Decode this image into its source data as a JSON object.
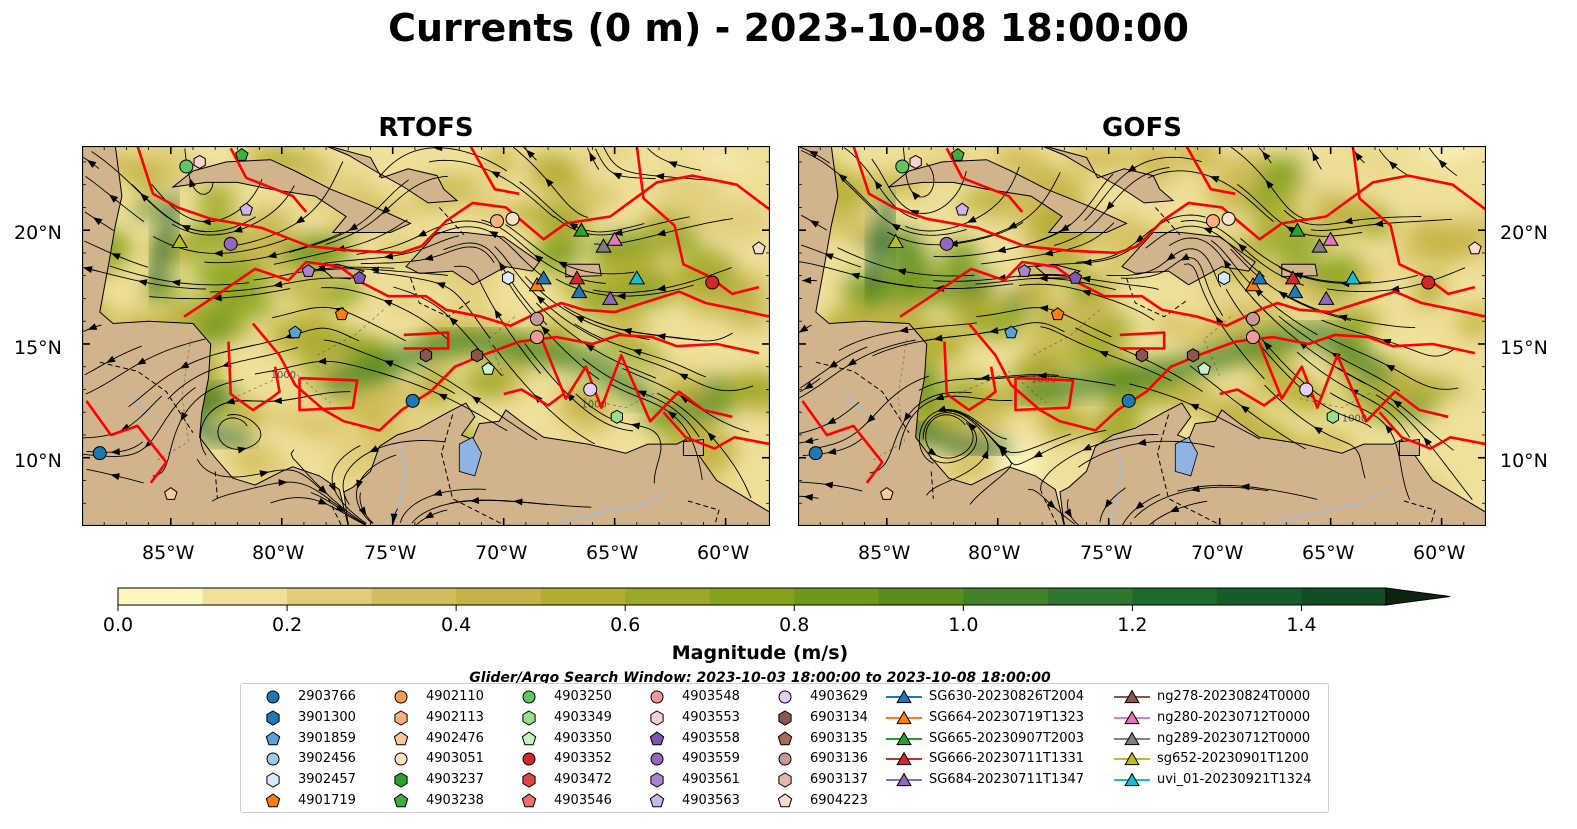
{
  "title": "Currents (0 m) - 2023-10-08 18:00:00",
  "panels": [
    {
      "id": "rtofs",
      "title": "RTOFS"
    },
    {
      "id": "gofs",
      "title": "GOFS"
    }
  ],
  "map_extent": {
    "lon_min": -89,
    "lon_max": -58,
    "lat_min": 7,
    "lat_max": 23.7
  },
  "lon_ticks": [
    "85°W",
    "80°W",
    "75°W",
    "70°W",
    "65°W",
    "60°W"
  ],
  "lat_ticks": [
    "20°N",
    "15°N",
    "10°N"
  ],
  "contour_label": "1000",
  "colorbar": {
    "label": "Magnitude (m/s)",
    "min": 0.0,
    "max": 1.5,
    "step": 0.1,
    "extend": "max",
    "ticks": [
      "0.0",
      "0.2",
      "0.4",
      "0.6",
      "0.8",
      "1.0",
      "1.2",
      "1.4"
    ],
    "colors": [
      "#fdf6bf",
      "#efe09a",
      "#e0cc7a",
      "#d2bd5e",
      "#c5b445",
      "#b1ad30",
      "#9da726",
      "#86a11b",
      "#6f9719",
      "#5a8d1e",
      "#428226",
      "#2d762c",
      "#1d6a2d",
      "#155c2a",
      "#124d25",
      "#11401f",
      "#0f331a",
      "#0c2513"
    ]
  },
  "search_window": "Glider/Argo Search Window: 2023-10-03 18:00:00 to 2023-10-08 18:00:00",
  "colors": {
    "land": "#d2b48c",
    "eez": "#ff0000",
    "river": "#a6bddb",
    "lake": "#8fb3e3"
  },
  "legend": {
    "columns": [
      [
        {
          "label": "2903766",
          "marker": "circle",
          "color": "#1f77b4"
        },
        {
          "label": "3901300",
          "marker": "hexagon",
          "color": "#1f77b4"
        },
        {
          "label": "3901859",
          "marker": "pentagon",
          "color": "#5aa1d6"
        },
        {
          "label": "3902456",
          "marker": "circle",
          "color": "#9ec9e2"
        },
        {
          "label": "3902457",
          "marker": "hexagon",
          "color": "#d6ebf7"
        },
        {
          "label": "4901719",
          "marker": "pentagon",
          "color": "#ff7f0e"
        }
      ],
      [
        {
          "label": "4902110",
          "marker": "circle",
          "color": "#ff9f4a"
        },
        {
          "label": "4902113",
          "marker": "hexagon",
          "color": "#ffb07a"
        },
        {
          "label": "4902476",
          "marker": "pentagon",
          "color": "#ffc99c"
        },
        {
          "label": "4903051",
          "marker": "circle",
          "color": "#ffe3c4"
        },
        {
          "label": "4903237",
          "marker": "hexagon",
          "color": "#2ca02c"
        },
        {
          "label": "4903238",
          "marker": "pentagon",
          "color": "#3cb03c"
        }
      ],
      [
        {
          "label": "4903250",
          "marker": "circle",
          "color": "#62c462"
        },
        {
          "label": "4903349",
          "marker": "hexagon",
          "color": "#98df8a"
        },
        {
          "label": "4903350",
          "marker": "pentagon",
          "color": "#cbf0c3"
        },
        {
          "label": "4903352",
          "marker": "circle",
          "color": "#d62728"
        },
        {
          "label": "4903472",
          "marker": "hexagon",
          "color": "#e04545"
        },
        {
          "label": "4903546",
          "marker": "pentagon",
          "color": "#f07070"
        }
      ],
      [
        {
          "label": "4903548",
          "marker": "circle",
          "color": "#f29a9a"
        },
        {
          "label": "4903553",
          "marker": "hexagon",
          "color": "#fbd0d0"
        },
        {
          "label": "4903558",
          "marker": "pentagon",
          "color": "#7e57b5"
        },
        {
          "label": "4903559",
          "marker": "circle",
          "color": "#9467bd"
        },
        {
          "label": "4903561",
          "marker": "hexagon",
          "color": "#a684cf"
        },
        {
          "label": "4903563",
          "marker": "pentagon",
          "color": "#cdb6ee"
        }
      ],
      [
        {
          "label": "4903629",
          "marker": "circle",
          "color": "#e1cff7"
        },
        {
          "label": "6903134",
          "marker": "hexagon",
          "color": "#8c564b"
        },
        {
          "label": "6903135",
          "marker": "pentagon",
          "color": "#a66a5a"
        },
        {
          "label": "6903136",
          "marker": "circle",
          "color": "#c49c94"
        },
        {
          "label": "6903137",
          "marker": "hexagon",
          "color": "#e5b9a8"
        },
        {
          "label": "6904223",
          "marker": "pentagon",
          "color": "#fbdcd0"
        }
      ],
      [
        {
          "label": "SG630-20230826T2004",
          "marker": "triangle",
          "color": "#1f77b4"
        },
        {
          "label": "SG664-20230719T1323",
          "marker": "triangle",
          "color": "#ff7f0e"
        },
        {
          "label": "SG665-20230907T2003",
          "marker": "triangle",
          "color": "#2ca02c"
        },
        {
          "label": "SG666-20230711T1331",
          "marker": "triangle",
          "color": "#d62728"
        },
        {
          "label": "SG684-20230711T1347",
          "marker": "triangle",
          "color": "#9467bd"
        }
      ],
      [
        {
          "label": "ng278-20230824T0000",
          "marker": "triangle",
          "color": "#8c564b"
        },
        {
          "label": "ng280-20230712T0000",
          "marker": "triangle",
          "color": "#e377c2"
        },
        {
          "label": "ng289-20230712T0000",
          "marker": "triangle",
          "color": "#7f7f7f"
        },
        {
          "label": "sg652-20230901T1200",
          "marker": "triangle",
          "color": "#bcbd22"
        },
        {
          "label": "uvi_01-20230921T1324",
          "marker": "triangle",
          "color": "#17becf"
        }
      ]
    ]
  },
  "floats": [
    {
      "lon": -84.3,
      "lat": 22.8,
      "marker": "circle",
      "color": "#62c462"
    },
    {
      "lon": -83.7,
      "lat": 23.0,
      "marker": "hexagon",
      "color": "#fbd0d0"
    },
    {
      "lon": -81.8,
      "lat": 23.3,
      "marker": "pentagon",
      "color": "#3cb03c"
    },
    {
      "lon": -81.6,
      "lat": 20.9,
      "marker": "pentagon",
      "color": "#cdb6ee"
    },
    {
      "lon": -82.3,
      "lat": 19.4,
      "marker": "circle",
      "color": "#9467bd"
    },
    {
      "lon": -78.8,
      "lat": 18.2,
      "marker": "pentagon",
      "color": "#a684cf"
    },
    {
      "lon": -76.5,
      "lat": 17.9,
      "marker": "pentagon",
      "color": "#7e57b5"
    },
    {
      "lon": -77.3,
      "lat": 16.3,
      "marker": "pentagon",
      "color": "#ff7f0e"
    },
    {
      "lon": -79.4,
      "lat": 15.5,
      "marker": "pentagon",
      "color": "#5aa1d6"
    },
    {
      "lon": -74.1,
      "lat": 12.5,
      "marker": "circle",
      "color": "#1f77b4"
    },
    {
      "lon": -73.5,
      "lat": 14.5,
      "marker": "hexagon",
      "color": "#8c564b"
    },
    {
      "lon": -71.2,
      "lat": 14.5,
      "marker": "hexagon",
      "color": "#8c564b"
    },
    {
      "lon": -70.7,
      "lat": 13.9,
      "marker": "pentagon",
      "color": "#cbf0c3"
    },
    {
      "lon": -68.5,
      "lat": 16.1,
      "marker": "circle",
      "color": "#c49c94"
    },
    {
      "lon": -68.5,
      "lat": 15.3,
      "marker": "circle",
      "color": "#f29a9a"
    },
    {
      "lon": -69.8,
      "lat": 17.9,
      "marker": "hexagon",
      "color": "#d6ebf7"
    },
    {
      "lon": -70.3,
      "lat": 20.4,
      "marker": "circle",
      "color": "#ffb07a"
    },
    {
      "lon": -69.6,
      "lat": 20.5,
      "marker": "circle",
      "color": "#ffe3c4"
    },
    {
      "lon": -66.1,
      "lat": 13.0,
      "marker": "circle",
      "color": "#e1cff7"
    },
    {
      "lon": -64.9,
      "lat": 11.8,
      "marker": "hexagon",
      "color": "#98df8a"
    },
    {
      "lon": -60.6,
      "lat": 17.7,
      "marker": "circle",
      "color": "#d62728"
    },
    {
      "lon": -58.5,
      "lat": 19.2,
      "marker": "pentagon",
      "color": "#fbdcd0"
    },
    {
      "lon": -88.2,
      "lat": 10.2,
      "marker": "circle",
      "color": "#1f77b4"
    },
    {
      "lon": -85.0,
      "lat": 8.4,
      "marker": "pentagon",
      "color": "#ffc99c"
    }
  ],
  "gliders": [
    {
      "lon": -84.6,
      "lat": 19.5,
      "color": "#bcbd22"
    },
    {
      "lon": -66.5,
      "lat": 20.0,
      "color": "#2ca02c"
    },
    {
      "lon": -65.0,
      "lat": 19.6,
      "color": "#e377c2"
    },
    {
      "lon": -65.5,
      "lat": 19.3,
      "color": "#7f7f7f"
    },
    {
      "lon": -68.5,
      "lat": 17.6,
      "color": "#ff7f0e"
    },
    {
      "lon": -68.2,
      "lat": 17.9,
      "color": "#1f77b4"
    },
    {
      "lon": -66.6,
      "lat": 17.3,
      "color": "#1f77b4"
    },
    {
      "lon": -65.2,
      "lat": 17.0,
      "color": "#9467bd"
    },
    {
      "lon": -64.0,
      "lat": 17.9,
      "color": "#17becf"
    },
    {
      "lon": -66.7,
      "lat": 17.9,
      "color": "#d62728"
    }
  ]
}
